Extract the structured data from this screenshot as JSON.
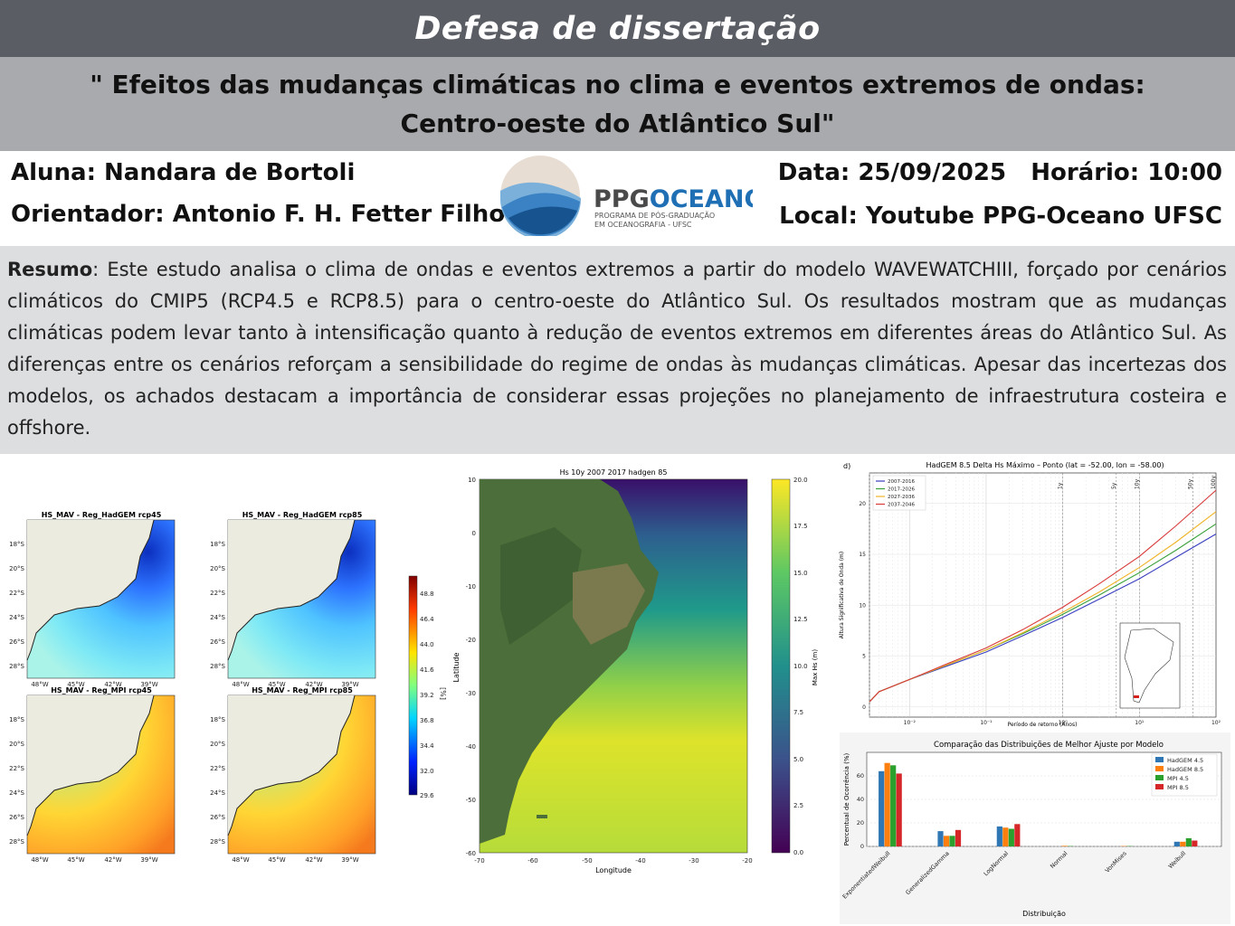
{
  "header": {
    "title": "Defesa de dissertação",
    "thesis_title": "\" Efeitos das mudanças climáticas no clima e eventos extremos de ondas: Centro-oeste do Atlântico Sul\""
  },
  "info": {
    "student": "Aluna: Nandara de Bortoli",
    "advisor": "Orientador: Antonio F. H. Fetter Filho",
    "date": "Data: 25/09/2025",
    "time": "Horário: 10:00",
    "location": "Local: Youtube PPG-Oceano UFSC"
  },
  "logo": {
    "name": "PPGOCEANO",
    "subtitle1": "PROGRAMA DE PÓS-GRADUAÇÃO",
    "subtitle2": "EM OCEANOGRAFIA - UFSC"
  },
  "abstract": {
    "label": "Resumo",
    "text": ": Este estudo analisa o clima de ondas e eventos extremos a partir do modelo WAVEWATCHIII, forçado por cenários climáticos do CMIP5 (RCP4.5 e RCP8.5) para o centro-oeste do Atlântico Sul. Os resultados mostram que as mudanças climáticas podem levar tanto à intensificação quanto à redução de eventos extremos em diferentes áreas do Atlântico Sul. As diferenças entre os cenários reforçam a sensibilidade do regime de ondas às mudanças climáticas. Apesar das incertezas dos modelos, os achados destacam a importância de considerar essas projeções no planejamento de infraestrutura costeira e offshore."
  },
  "maps": {
    "panels": [
      {
        "title": "HS_MAV - Reg_HadGEM rcp45"
      },
      {
        "title": "HS_MAV - Reg_HadGEM rcp85"
      },
      {
        "title": "HS_MAV - Reg_MPI rcp45"
      },
      {
        "title": "HS_MAV - Reg_MPI rcp85"
      }
    ],
    "lat_ticks": [
      "18°S",
      "20°S",
      "22°S",
      "24°S",
      "26°S",
      "28°S"
    ],
    "lon_ticks": [
      "48°W",
      "45°W",
      "42°W",
      "39°W"
    ],
    "colorbar_ticks": [
      "48.8",
      "46.4",
      "44.0",
      "41.6",
      "39.2",
      "36.8",
      "34.4",
      "32.0",
      "29.6"
    ],
    "colorbar_label": "[%]"
  },
  "bigmap": {
    "title": "Hs 10y 2007 2017 hadgen 85",
    "xlabel": "Longitude",
    "ylabel": "Latitude",
    "xticks": [
      "-70",
      "-60",
      "-50",
      "-40",
      "-30",
      "-20"
    ],
    "yticks": [
      "10",
      "0",
      "-10",
      "-20",
      "-30",
      "-40",
      "-50",
      "-60"
    ],
    "colorbar_ticks": [
      "20.0",
      "17.5",
      "15.0",
      "12.5",
      "10.0",
      "7.5",
      "5.0",
      "2.5",
      "0.0"
    ],
    "colorbar_label": "Max Hs (m)"
  },
  "colors": {
    "topbar": "#5a5d64",
    "titlebar": "#a9aaad",
    "abstract_bg": "#dddee0",
    "logo_blue": "#1f6fb5"
  },
  "chart_data": [
    {
      "type": "line",
      "panel_label": "d)",
      "title": "HadGEM 8.5 Delta Hs Máximo – Ponto (lat = -52.00, lon = -58.00)",
      "xlabel": "Período de retorno (Anos)",
      "ylabel": "Altura Significativa de Onda (m)",
      "xscale": "log",
      "xlim": [
        0.003,
        100
      ],
      "ylim": [
        -1,
        23
      ],
      "xtick_labels": [
        "10⁻²",
        "10⁻¹",
        "10⁰",
        "10¹",
        "10²"
      ],
      "yticks": [
        0,
        5,
        10,
        15,
        20
      ],
      "return_periods": [
        "1y",
        "5y",
        "10y",
        "50y",
        "100y"
      ],
      "grid": true,
      "legend_position": "top-left",
      "x": [
        0.003,
        0.004,
        0.01,
        0.03,
        0.1,
        0.3,
        1,
        3,
        10,
        30,
        100
      ],
      "series": [
        {
          "name": "2007-2016",
          "color": "#3a3fbf",
          "values": [
            0.5,
            1.5,
            2.7,
            4.0,
            5.4,
            7.0,
            8.8,
            10.6,
            12.6,
            14.7,
            17.0
          ]
        },
        {
          "name": "2017-2026",
          "color": "#3aa03a",
          "values": [
            0.5,
            1.5,
            2.7,
            4.1,
            5.6,
            7.2,
            9.1,
            11.0,
            13.2,
            15.4,
            18.0
          ]
        },
        {
          "name": "2027-2036",
          "color": "#f0b428",
          "values": [
            0.5,
            1.5,
            2.7,
            4.1,
            5.6,
            7.3,
            9.3,
            11.3,
            13.7,
            16.2,
            19.2
          ]
        },
        {
          "name": "2037-2046",
          "color": "#d83a3a",
          "values": [
            0.5,
            1.5,
            2.7,
            4.2,
            5.8,
            7.6,
            9.8,
            12.1,
            14.8,
            17.8,
            21.3
          ]
        }
      ]
    },
    {
      "type": "bar",
      "title": "Comparação das Distribuições de Melhor Ajuste por Modelo",
      "xlabel": "Distribuição",
      "ylabel": "Percentual de Ocorrência (%)",
      "ylim": [
        0,
        80
      ],
      "yticks": [
        0,
        20,
        40,
        60
      ],
      "grid": true,
      "legend_position": "top-right",
      "categories": [
        "ExponentiatedWeibull",
        "GeneralizedGamma",
        "LogNormal",
        "Normal",
        "VonMises",
        "Weibull"
      ],
      "series": [
        {
          "name": "HadGEM 4.5",
          "color": "#2f77b4",
          "values": [
            64,
            13,
            17,
            0,
            0,
            4
          ]
        },
        {
          "name": "HadGEM 8.5",
          "color": "#ff7f0e",
          "values": [
            71,
            9,
            16,
            0.5,
            0.3,
            4
          ]
        },
        {
          "name": "MPI 4.5",
          "color": "#2ca02c",
          "values": [
            69,
            9,
            15,
            0.3,
            0.3,
            7
          ]
        },
        {
          "name": "MPI 8.5",
          "color": "#d62728",
          "values": [
            62,
            14,
            19,
            0,
            0,
            5
          ]
        }
      ]
    }
  ]
}
